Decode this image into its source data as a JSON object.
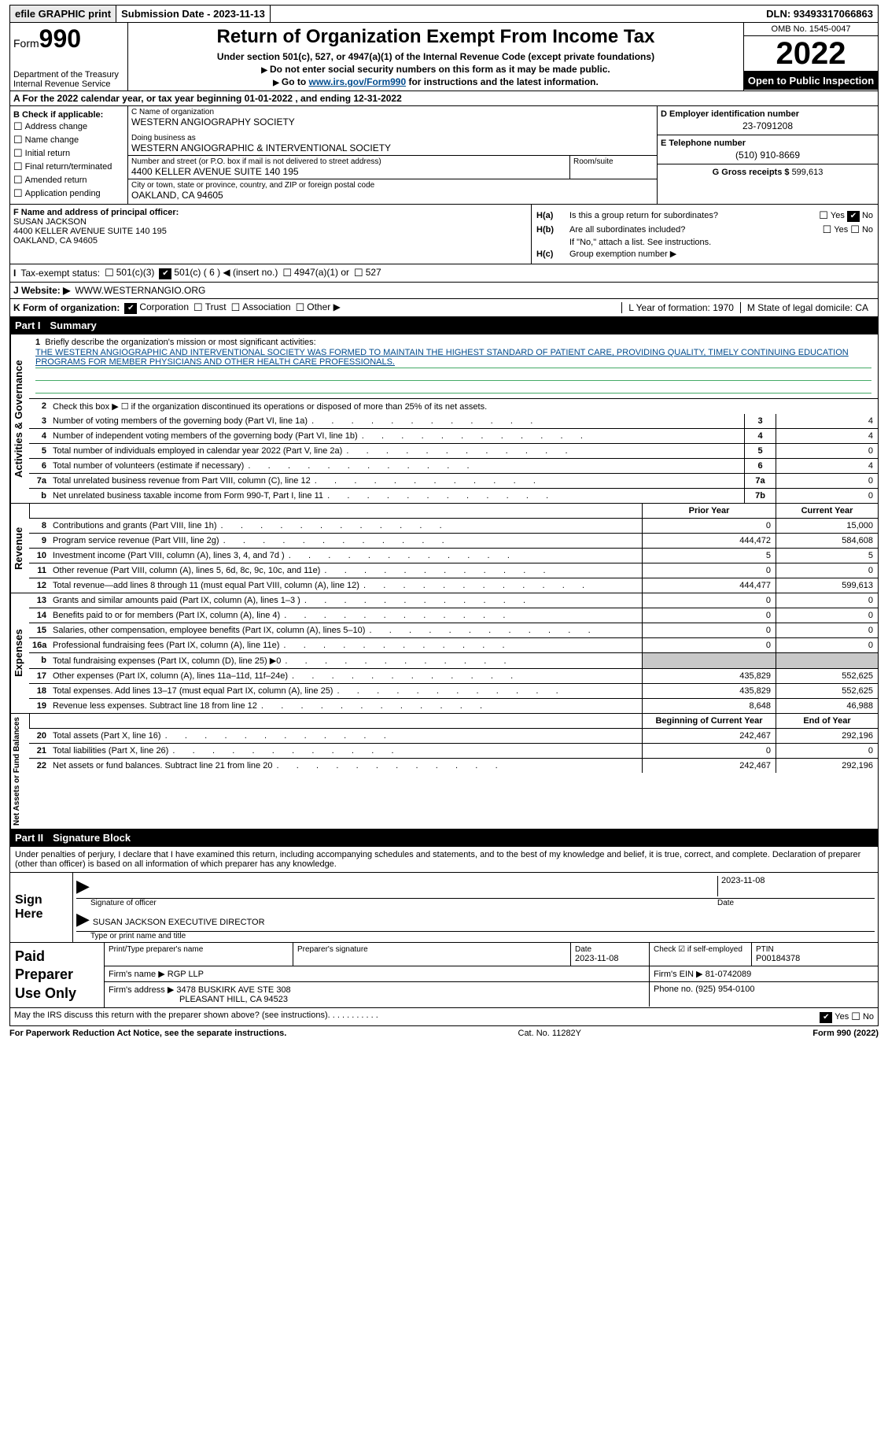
{
  "topbar": {
    "efile": "efile GRAPHIC print",
    "submission": "Submission Date - 2023-11-13",
    "dln": "DLN: 93493317066863"
  },
  "header": {
    "form_prefix": "Form",
    "form_num": "990",
    "dept": "Department of the Treasury Internal Revenue Service",
    "title": "Return of Organization Exempt From Income Tax",
    "sub1": "Under section 501(c), 527, or 4947(a)(1) of the Internal Revenue Code (except private foundations)",
    "sub2": "Do not enter social security numbers on this form as it may be made public.",
    "sub3_pre": "Go to ",
    "sub3_link": "www.irs.gov/Form990",
    "sub3_post": " for instructions and the latest information.",
    "omb": "OMB No. 1545-0047",
    "year": "2022",
    "inspect": "Open to Public Inspection"
  },
  "row_a": "A For the 2022 calendar year, or tax year beginning 01-01-2022    , and ending 12-31-2022",
  "col_b": {
    "hdr": "B Check if applicable:",
    "items": [
      "Address change",
      "Name change",
      "Initial return",
      "Final return/terminated",
      "Amended return",
      "Application pending"
    ]
  },
  "col_c": {
    "name_lbl": "C Name of organization",
    "name": "WESTERN ANGIOGRAPHY SOCIETY",
    "dba_lbl": "Doing business as",
    "dba": "WESTERN ANGIOGRAPHIC & INTERVENTIONAL SOCIETY",
    "addr_lbl": "Number and street (or P.O. box if mail is not delivered to street address)",
    "addr": "4400 KELLER AVENUE SUITE 140 195",
    "room_lbl": "Room/suite",
    "city_lbl": "City or town, state or province, country, and ZIP or foreign postal code",
    "city": "OAKLAND, CA  94605"
  },
  "col_d": {
    "ein_lbl": "D Employer identification number",
    "ein": "23-7091208",
    "tel_lbl": "E Telephone number",
    "tel": "(510) 910-8669",
    "gross_lbl": "G Gross receipts $ ",
    "gross": "599,613"
  },
  "col_f": {
    "lbl": "F Name and address of principal officer:",
    "name": "SUSAN JACKSON",
    "addr1": "4400 KELLER AVENUE SUITE 140 195",
    "addr2": "OAKLAND, CA  94605"
  },
  "col_h": {
    "ha": "Is this a group return for subordinates?",
    "hb": "Are all subordinates included?",
    "hb_note": "If \"No,\" attach a list. See instructions.",
    "hc": "Group exemption number ▶"
  },
  "row_i": {
    "lbl": "Tax-exempt status:",
    "opts": [
      "501(c)(3)",
      "501(c) ( 6 ) ◀ (insert no.)",
      "4947(a)(1) or",
      "527"
    ]
  },
  "row_j": {
    "lbl": "J   Website: ▶",
    "val": "WWW.WESTERNANGIO.ORG"
  },
  "row_k": {
    "lbl": "K Form of organization:",
    "opts": [
      "Corporation",
      "Trust",
      "Association",
      "Other ▶"
    ],
    "l": "L Year of formation: 1970",
    "m": "M State of legal domicile: CA"
  },
  "part1": {
    "hdr_num": "Part I",
    "hdr_txt": "Summary",
    "mission_lbl": "Briefly describe the organization's mission or most significant activities:",
    "mission": "THE WESTERN ANGIOGRAPHIC AND INTERVENTIONAL SOCIETY WAS FORMED TO MAINTAIN THE HIGHEST STANDARD OF PATIENT CARE, PROVIDING QUALITY, TIMELY CONTINUING EDUCATION PROGRAMS FOR MEMBER PHYSICIANS AND OTHER HEALTH CARE PROFESSIONALS.",
    "line2": "Check this box ▶ ☐ if the organization discontinued its operations or disposed of more than 25% of its net assets.",
    "py_hdr": "Prior Year",
    "cy_hdr": "Current Year",
    "boy_hdr": "Beginning of Current Year",
    "eoy_hdr": "End of Year",
    "rows_gov": [
      {
        "n": "3",
        "d": "Number of voting members of the governing body (Part VI, line 1a)",
        "box": "3",
        "v": "4"
      },
      {
        "n": "4",
        "d": "Number of independent voting members of the governing body (Part VI, line 1b)",
        "box": "4",
        "v": "4"
      },
      {
        "n": "5",
        "d": "Total number of individuals employed in calendar year 2022 (Part V, line 2a)",
        "box": "5",
        "v": "0"
      },
      {
        "n": "6",
        "d": "Total number of volunteers (estimate if necessary)",
        "box": "6",
        "v": "4"
      },
      {
        "n": "7a",
        "d": "Total unrelated business revenue from Part VIII, column (C), line 12",
        "box": "7a",
        "v": "0"
      },
      {
        "n": "b",
        "d": "Net unrelated business taxable income from Form 990-T, Part I, line 11",
        "box": "7b",
        "v": "0"
      }
    ],
    "rows_rev": [
      {
        "n": "8",
        "d": "Contributions and grants (Part VIII, line 1h)",
        "py": "0",
        "cy": "15,000"
      },
      {
        "n": "9",
        "d": "Program service revenue (Part VIII, line 2g)",
        "py": "444,472",
        "cy": "584,608"
      },
      {
        "n": "10",
        "d": "Investment income (Part VIII, column (A), lines 3, 4, and 7d )",
        "py": "5",
        "cy": "5"
      },
      {
        "n": "11",
        "d": "Other revenue (Part VIII, column (A), lines 5, 6d, 8c, 9c, 10c, and 11e)",
        "py": "0",
        "cy": "0"
      },
      {
        "n": "12",
        "d": "Total revenue—add lines 8 through 11 (must equal Part VIII, column (A), line 12)",
        "py": "444,477",
        "cy": "599,613"
      }
    ],
    "rows_exp": [
      {
        "n": "13",
        "d": "Grants and similar amounts paid (Part IX, column (A), lines 1–3 )",
        "py": "0",
        "cy": "0"
      },
      {
        "n": "14",
        "d": "Benefits paid to or for members (Part IX, column (A), line 4)",
        "py": "0",
        "cy": "0"
      },
      {
        "n": "15",
        "d": "Salaries, other compensation, employee benefits (Part IX, column (A), lines 5–10)",
        "py": "0",
        "cy": "0"
      },
      {
        "n": "16a",
        "d": "Professional fundraising fees (Part IX, column (A), line 11e)",
        "py": "0",
        "cy": "0"
      },
      {
        "n": "b",
        "d": "Total fundraising expenses (Part IX, column (D), line 25) ▶0",
        "py": "grey",
        "cy": "grey"
      },
      {
        "n": "17",
        "d": "Other expenses (Part IX, column (A), lines 11a–11d, 11f–24e)",
        "py": "435,829",
        "cy": "552,625"
      },
      {
        "n": "18",
        "d": "Total expenses. Add lines 13–17 (must equal Part IX, column (A), line 25)",
        "py": "435,829",
        "cy": "552,625"
      },
      {
        "n": "19",
        "d": "Revenue less expenses. Subtract line 18 from line 12",
        "py": "8,648",
        "cy": "46,988"
      }
    ],
    "rows_net": [
      {
        "n": "20",
        "d": "Total assets (Part X, line 16)",
        "py": "242,467",
        "cy": "292,196"
      },
      {
        "n": "21",
        "d": "Total liabilities (Part X, line 26)",
        "py": "0",
        "cy": "0"
      },
      {
        "n": "22",
        "d": "Net assets or fund balances. Subtract line 21 from line 20",
        "py": "242,467",
        "cy": "292,196"
      }
    ],
    "tabs": [
      "Activities & Governance",
      "Revenue",
      "Expenses",
      "Net Assets or Fund Balances"
    ]
  },
  "part2": {
    "hdr_num": "Part II",
    "hdr_txt": "Signature Block",
    "intro": "Under penalties of perjury, I declare that I have examined this return, including accompanying schedules and statements, and to the best of my knowledge and belief, it is true, correct, and complete. Declaration of preparer (other than officer) is based on all information of which preparer has any knowledge.",
    "sign_here": "Sign Here",
    "sig_officer": "Signature of officer",
    "sig_date": "Date",
    "sig_date_val": "2023-11-08",
    "sig_name": "SUSAN JACKSON  EXECUTIVE DIRECTOR",
    "sig_name_lbl": "Type or print name and title",
    "prep_hdr": "Paid Preparer Use Only",
    "prep_name_lbl": "Print/Type preparer's name",
    "prep_sig_lbl": "Preparer's signature",
    "prep_date_lbl": "Date",
    "prep_date": "2023-11-08",
    "prep_check_lbl": "Check ☑ if self-employed",
    "prep_ptin_lbl": "PTIN",
    "prep_ptin": "P00184378",
    "firm_name_lbl": "Firm's name    ▶",
    "firm_name": "RGP LLP",
    "firm_ein_lbl": "Firm's EIN ▶",
    "firm_ein": "81-0742089",
    "firm_addr_lbl": "Firm's address ▶",
    "firm_addr1": "3478 BUSKIRK AVE STE 308",
    "firm_addr2": "PLEASANT HILL, CA  94523",
    "firm_phone_lbl": "Phone no.",
    "firm_phone": "(925) 954-0100",
    "discuss": "May the IRS discuss this return with the preparer shown above? (see instructions)"
  },
  "footer": {
    "pra": "For Paperwork Reduction Act Notice, see the separate instructions.",
    "cat": "Cat. No. 11282Y",
    "form": "Form 990 (2022)"
  }
}
